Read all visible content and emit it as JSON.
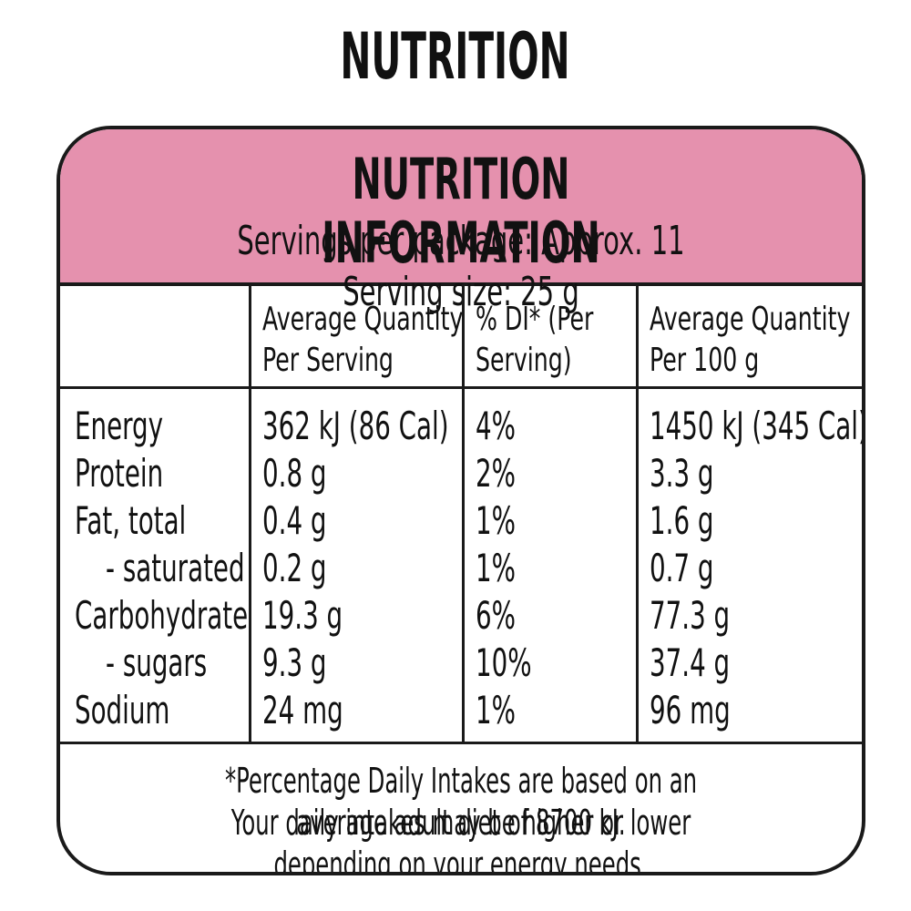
{
  "page": {
    "title": "NUTRITION"
  },
  "panel": {
    "title": "NUTRITION INFORMATION",
    "servings": "Servings per package: Approx. 11  Serving size: 25 g",
    "header_color": "#e591ae"
  },
  "columns": {
    "per_serving_line1": "Average Quantity",
    "per_serving_line2": "Per Serving",
    "di_line1": "% DI* (Per",
    "di_line2": "Serving)",
    "per_100g_line1": "Average Quantity",
    "per_100g_line2": "Per 100 g"
  },
  "rows": [
    {
      "label": "Energy",
      "per_serving": "362 kJ (86 Cal)",
      "di": "4%",
      "per_100g": "1450 kJ (345 Cal)"
    },
    {
      "label": "Protein",
      "per_serving": "0.8 g",
      "di": "2%",
      "per_100g": "3.3 g"
    },
    {
      "label": "Fat, total",
      "per_serving": "0.4 g",
      "di": "1%",
      "per_100g": "1.6 g"
    },
    {
      "label": "- saturated",
      "per_serving": "0.2 g",
      "di": "1%",
      "per_100g": "0.7 g"
    },
    {
      "label": "Carbohydrate",
      "per_serving": "19.3 g",
      "di": "6%",
      "per_100g": "77.3 g"
    },
    {
      "label": "- sugars",
      "per_serving": "9.3 g",
      "di": "10%",
      "per_100g": "37.4 g"
    },
    {
      "label": "Sodium",
      "per_serving": "24 mg",
      "di": "1%",
      "per_100g": "96 mg"
    }
  ],
  "footnote": {
    "line1": "*Percentage Daily Intakes are based on an average adult diet of 8700 kJ.",
    "line2": "Your daily intakes may be higher or lower depending on your energy needs."
  }
}
